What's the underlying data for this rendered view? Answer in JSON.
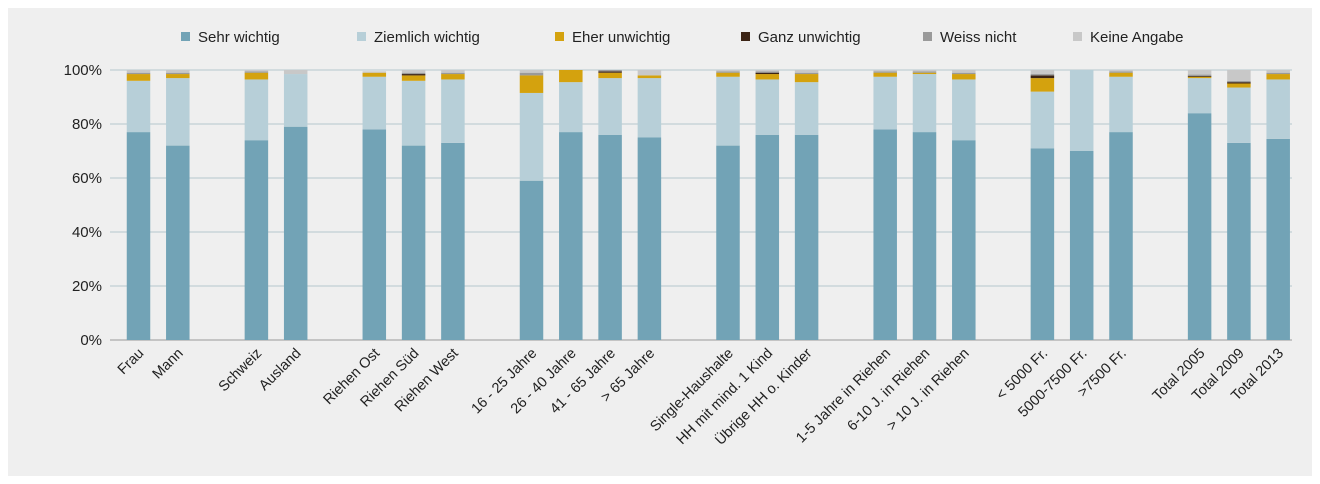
{
  "chart_data": {
    "type": "bar",
    "stacked": true,
    "title": "",
    "xlabel": "",
    "ylabel": "",
    "ylim": [
      0,
      100
    ],
    "yticks": [
      "0%",
      "20%",
      "40%",
      "60%",
      "80%",
      "100%"
    ],
    "grid": true,
    "legend_position": "top",
    "categories": [
      "Frau",
      "Mann",
      "",
      "Schweiz",
      "Ausland",
      "",
      "Riehen Ost",
      "Riehen Süd",
      "Riehen West",
      "",
      "16 - 25 Jahre",
      "26 - 40 Jahre",
      "41 - 65 Jahre",
      "> 65 Jahre",
      "",
      "Single-Haushalte",
      "HH mit mind. 1 Kind",
      "Übrige HH o. Kinder",
      "",
      "1-5 Jahre in Riehen",
      "6-10 J. in Riehen",
      "> 10 J. in Riehen",
      "",
      "< 5000 Fr.",
      "5000-7500 Fr.",
      ">7500 Fr.",
      "",
      "Total 2005",
      "Total 2009",
      "Total 2013"
    ],
    "series": [
      {
        "name": "Sehr wichtig",
        "color": "#72a3b6",
        "values": [
          77,
          72,
          null,
          74,
          79,
          null,
          78,
          72,
          73,
          null,
          59,
          77,
          76,
          75,
          null,
          72,
          76,
          76,
          null,
          78,
          77,
          74,
          null,
          71,
          70,
          77,
          null,
          84,
          73,
          74.5
        ]
      },
      {
        "name": "Ziemlich wichtig",
        "color": "#b7cfd8",
        "values": [
          19,
          25,
          null,
          22.5,
          19.5,
          null,
          19.5,
          24,
          23.5,
          null,
          32.5,
          18.5,
          21,
          22,
          null,
          25.5,
          20.5,
          19.5,
          null,
          19.5,
          21.5,
          22.5,
          null,
          21,
          30,
          20.5,
          null,
          13,
          20.5,
          22
        ]
      },
      {
        "name": "Eher unwichtig",
        "color": "#d4a20e",
        "values": [
          2.5,
          1.5,
          null,
          2.5,
          0,
          null,
          1.5,
          2,
          2,
          null,
          6.5,
          4.5,
          2,
          1,
          null,
          1.5,
          2,
          3,
          null,
          1.5,
          0.5,
          2,
          null,
          5,
          0,
          1.5,
          null,
          0.5,
          1.5,
          2
        ]
      },
      {
        "name": "Ganz unwichtig",
        "color": "#3c2415",
        "values": [
          0,
          0,
          null,
          0,
          0,
          null,
          0,
          0.5,
          0,
          null,
          0,
          0,
          0.5,
          0,
          null,
          0,
          0.5,
          0,
          null,
          0,
          0,
          0,
          null,
          1,
          0,
          0,
          null,
          0.3,
          0.5,
          0
        ]
      },
      {
        "name": "Weiss nicht",
        "color": "#9a9a9a",
        "values": [
          0.5,
          0.5,
          null,
          0.5,
          0,
          null,
          0,
          0.5,
          0.5,
          null,
          1,
          0,
          0.5,
          0,
          null,
          0.5,
          0.5,
          0.5,
          null,
          0.5,
          0.5,
          0.5,
          null,
          0.5,
          0,
          0.5,
          null,
          0.5,
          0.5,
          0.5
        ]
      },
      {
        "name": "Keine Angabe",
        "color": "#c8c8c8",
        "values": [
          1,
          1,
          null,
          0.5,
          1.5,
          null,
          0.5,
          1,
          1,
          null,
          1,
          0,
          0,
          2,
          null,
          0.5,
          0.5,
          1,
          null,
          0.5,
          0.5,
          1,
          null,
          1.5,
          0,
          0.5,
          null,
          1.7,
          4,
          1
        ]
      }
    ]
  }
}
